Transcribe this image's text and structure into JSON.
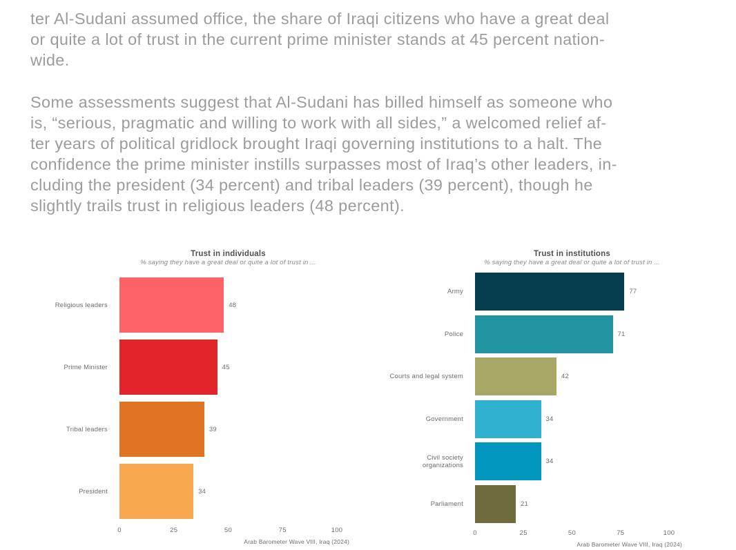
{
  "page": {
    "background": "#ffffff",
    "body_text_color": "#9c9c9c"
  },
  "paragraphs": [
    {
      "lines": [
        "ter Al-Sudani assumed office, the share of Iraqi citizens who have a great deal",
        "or quite a lot of trust in the current prime minister stands at 45 percent nation-",
        "wide."
      ]
    },
    {
      "lines": [
        "Some assessments suggest that Al-Sudani has billed himself as someone who",
        "is, “serious, pragmatic and willing to work with all sides,” a welcomed relief af-",
        "ter years of political gridlock brought Iraqi governing institutions to a halt. The",
        "confidence the prime minister instills surpasses most of Iraq’s other leaders, in-",
        "cluding the president (34 percent) and tribal leaders (39 percent), though he",
        "slightly trails trust in religious leaders (48 percent)."
      ]
    }
  ],
  "chart_data": [
    {
      "type": "bar",
      "orientation": "horizontal",
      "title": "Trust in individuals",
      "subtitle": "% saying they have a great deal or quite a lot of trust in ...",
      "categories": [
        "Religious leaders",
        "Prime Minister",
        "Tribal leaders",
        "President"
      ],
      "values": [
        48,
        45,
        39,
        34
      ],
      "bar_colors": [
        "#fc6266",
        "#e2242b",
        "#df7523",
        "#f8a950"
      ],
      "xlim": [
        0,
        100
      ],
      "x_ticks": [
        0,
        25,
        50,
        75,
        100
      ],
      "grid": false,
      "value_labels": true,
      "source": "Arab Barometer Wave VIII, Iraq (2024)"
    },
    {
      "type": "bar",
      "orientation": "horizontal",
      "title": "Trust in institutions",
      "subtitle": "% saying they have a great deal or quite a lot of trust in ...",
      "categories": [
        "Army",
        "Police",
        "Courts and legal system",
        "Government",
        "Civil society organizations",
        "Parliament"
      ],
      "values": [
        77,
        71,
        42,
        34,
        34,
        21
      ],
      "bar_colors": [
        "#073e4f",
        "#1f93a0",
        "#a8a664",
        "#2fb0ce",
        "#0096be",
        "#6e6b3d"
      ],
      "xlim": [
        0,
        100
      ],
      "x_ticks": [
        0,
        25,
        50,
        75,
        100
      ],
      "grid": false,
      "value_labels": true,
      "source": "Arab Barometer Wave VIII, Iraq (2024)"
    }
  ]
}
